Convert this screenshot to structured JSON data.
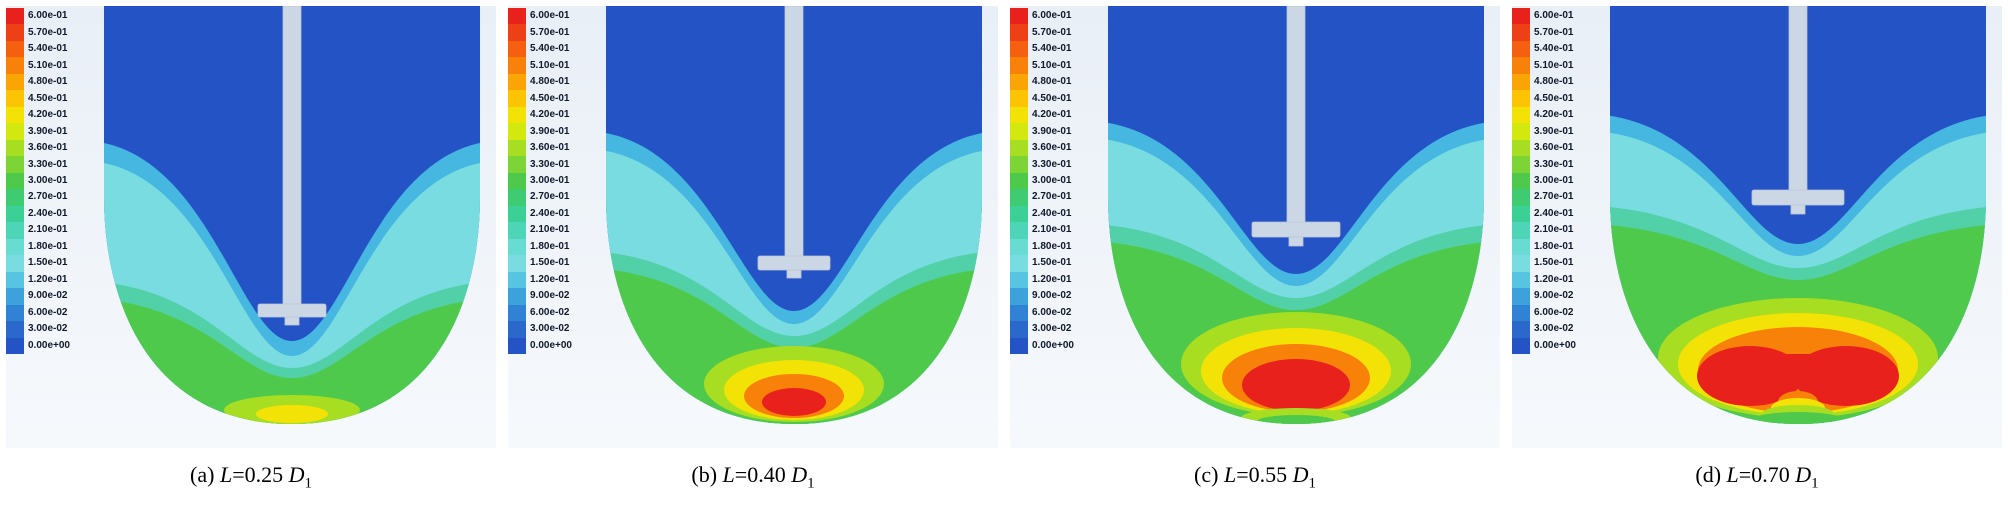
{
  "figure": {
    "legend": {
      "labels": [
        "6.00e-01",
        "5.70e-01",
        "5.40e-01",
        "5.10e-01",
        "4.80e-01",
        "4.50e-01",
        "4.20e-01",
        "3.90e-01",
        "3.60e-01",
        "3.30e-01",
        "3.00e-01",
        "2.70e-01",
        "2.40e-01",
        "2.10e-01",
        "1.80e-01",
        "1.50e-01",
        "1.20e-01",
        "9.00e-02",
        "6.00e-02",
        "3.00e-02",
        "0.00e+00"
      ],
      "colors": [
        "#e8211d",
        "#ee4016",
        "#f4600f",
        "#f8810a",
        "#fba406",
        "#fdc403",
        "#f2e205",
        "#d2e80e",
        "#a8de22",
        "#7cd437",
        "#4fc94b",
        "#3ecb72",
        "#3bd096",
        "#4ed5b8",
        "#68dcd2",
        "#79dce0",
        "#57c4e2",
        "#3da2dc",
        "#2f82d4",
        "#2a68cc",
        "#2453c6"
      ]
    },
    "panels": [
      {
        "index_label": "(a)",
        "symbol": "L",
        "value": "=0.25",
        "diameter_symbol": "D",
        "diameter_subscript": "1"
      },
      {
        "index_label": "(b)",
        "symbol": "L",
        "value": "=0.40",
        "diameter_symbol": "D",
        "diameter_subscript": "1"
      },
      {
        "index_label": "(c)",
        "symbol": "L",
        "value": "=0.55",
        "diameter_symbol": "D",
        "diameter_subscript": "1"
      },
      {
        "index_label": "(d)",
        "symbol": "L",
        "value": "=0.70",
        "diameter_symbol": "D",
        "diameter_subscript": "1"
      }
    ]
  },
  "chart_data": {
    "type": "heatmap",
    "subtype": "cfd-velocity-contour",
    "description": "Four CFD contour plots of a round-bottom stirred vessel with a central shaft and impeller at four immersion depths. Velocity magnitude is blue (low) at the top of the vessel and increases toward the bowl bottom.",
    "colorbar": {
      "orientation": "vertical",
      "position": "left-of-each-panel",
      "min": 0.0,
      "max": 0.6,
      "step": 0.03,
      "tick_labels": [
        "6.00e-01",
        "5.70e-01",
        "5.40e-01",
        "5.10e-01",
        "4.80e-01",
        "4.50e-01",
        "4.20e-01",
        "3.90e-01",
        "3.60e-01",
        "3.30e-01",
        "3.00e-01",
        "2.70e-01",
        "2.40e-01",
        "2.10e-01",
        "1.80e-01",
        "1.50e-01",
        "1.20e-01",
        "9.00e-02",
        "6.00e-02",
        "3.00e-02",
        "0.00e+00"
      ],
      "colors": [
        "#e8211d",
        "#ee4016",
        "#f4600f",
        "#f8810a",
        "#fba406",
        "#fdc403",
        "#f2e205",
        "#d2e80e",
        "#a8de22",
        "#7cd437",
        "#4fc94b",
        "#3ecb72",
        "#3bd096",
        "#4ed5b8",
        "#68dcd2",
        "#79dce0",
        "#57c4e2",
        "#3da2dc",
        "#2f82d4",
        "#2a68cc",
        "#2453c6"
      ]
    },
    "panels": [
      {
        "caption": "(a) L=0.25 D1",
        "impeller_position": "deepest (near bowl bottom)",
        "bottom_zone": "green band at bowl base, no red hotspot"
      },
      {
        "caption": "(b) L=0.40 D1",
        "impeller_position": "deep",
        "bottom_zone": "small red hotspot at bowl base ringed by orange/yellow/green"
      },
      {
        "caption": "(c) L=0.55 D1",
        "impeller_position": "mid-height",
        "bottom_zone": "large red hotspot at bowl base, green over lower third"
      },
      {
        "caption": "(d) L=0.70 D1",
        "impeller_position": "highest",
        "bottom_zone": "widest twin-lobed red hotspot at bowl base, green over lower half"
      }
    ]
  }
}
